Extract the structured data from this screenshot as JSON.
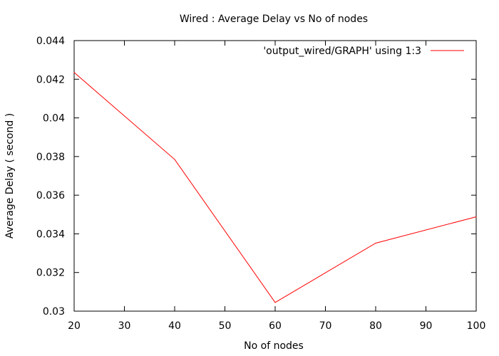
{
  "chart_data": {
    "type": "line",
    "title": "Wired : Average Delay vs No of nodes",
    "xlabel": "No of nodes",
    "ylabel": "Average Delay ( second )",
    "xlim": [
      20,
      100
    ],
    "ylim": [
      0.03,
      0.044
    ],
    "xticks": [
      "20",
      "30",
      "40",
      "50",
      "60",
      "70",
      "80",
      "90",
      "100"
    ],
    "yticks": [
      "0.03",
      "0.032",
      "0.034",
      "0.036",
      "0.038",
      "0.04",
      "0.042",
      "0.044"
    ],
    "legend_position": "top-right",
    "grid": false,
    "series": [
      {
        "name": "'output_wired/GRAPH' using 1:3",
        "color": "#ff0000",
        "x": [
          20,
          40,
          60,
          80,
          100
        ],
        "y": [
          0.04235,
          0.03785,
          0.03045,
          0.03352,
          0.03488
        ]
      }
    ]
  }
}
